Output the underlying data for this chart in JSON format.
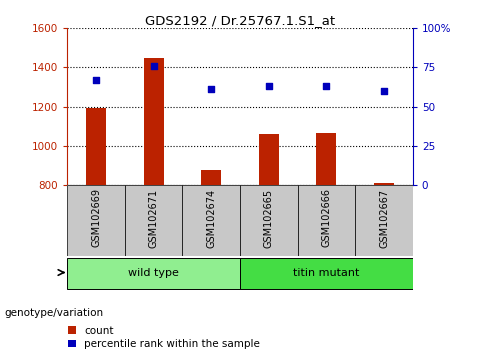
{
  "title": "GDS2192 / Dr.25767.1.S1_at",
  "samples": [
    "GSM102669",
    "GSM102671",
    "GSM102674",
    "GSM102665",
    "GSM102666",
    "GSM102667"
  ],
  "counts": [
    1195,
    1450,
    875,
    1060,
    1065,
    810
  ],
  "percentile_ranks": [
    67,
    76,
    61,
    63,
    63,
    60
  ],
  "groups": [
    {
      "label": "wild type",
      "color": "#90EE90",
      "start": 0,
      "end": 2
    },
    {
      "label": "titin mutant",
      "color": "#44DD44",
      "start": 3,
      "end": 5
    }
  ],
  "ylim_left": [
    800,
    1600
  ],
  "ylim_right": [
    0,
    100
  ],
  "yticks_left": [
    800,
    1000,
    1200,
    1400,
    1600
  ],
  "yticks_right": [
    0,
    25,
    50,
    75,
    100
  ],
  "ytick_labels_right": [
    "0",
    "25",
    "50",
    "75",
    "100%"
  ],
  "bar_color": "#BB2200",
  "dot_color": "#0000BB",
  "bar_width": 0.35,
  "genotype_label": "genotype/variation",
  "legend_count_label": "count",
  "legend_percentile_label": "percentile rank within the sample",
  "col_gray": "#C8C8C8",
  "plot_bg": "#FFFFFF"
}
